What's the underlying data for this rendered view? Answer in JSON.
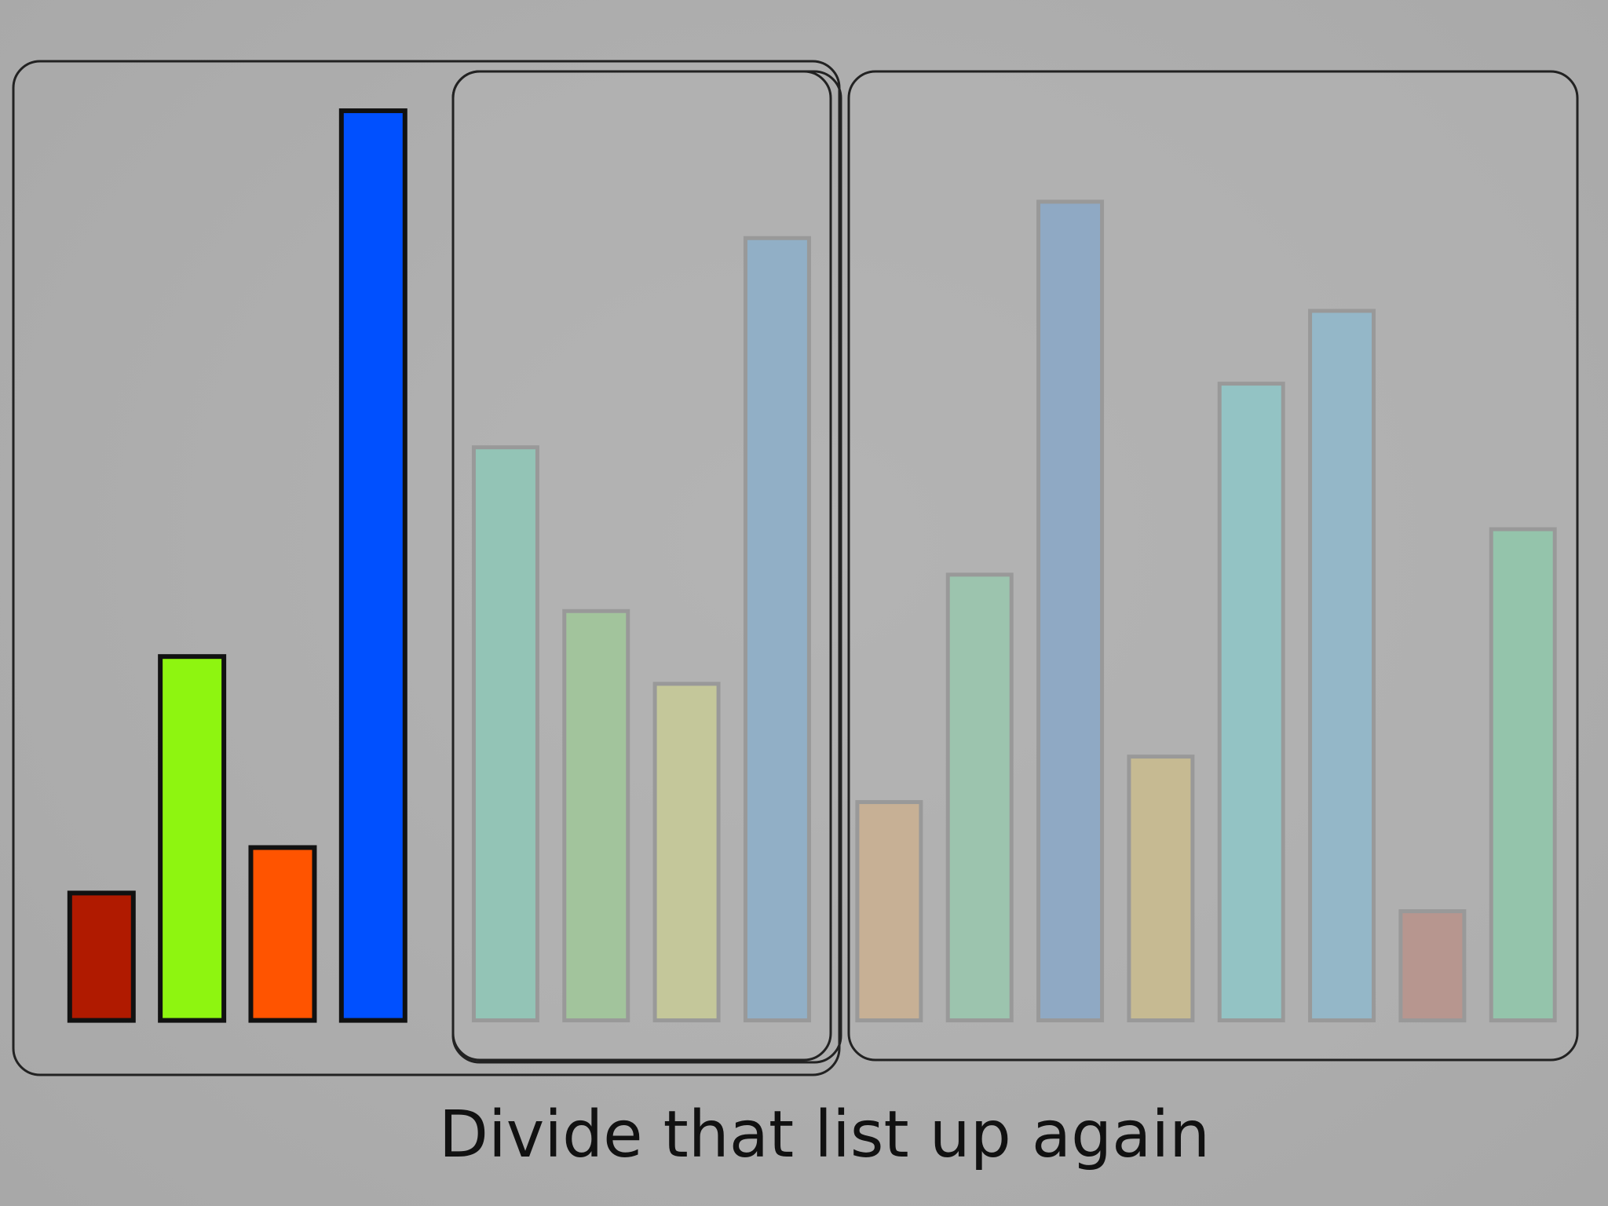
{
  "caption": "Divide that list up again",
  "ylim": [
    0,
    100
  ],
  "groups": [
    {
      "highlighted": true,
      "bars": [
        {
          "color": "#b01a00",
          "value": 14
        },
        {
          "color": "#8ef510",
          "value": 40
        },
        {
          "color": "#ff5400",
          "value": 19
        },
        {
          "color": "#0050ff",
          "value": 100
        }
      ]
    },
    {
      "highlighted": false,
      "bars": [
        {
          "color": "#93c4b6",
          "value": 63
        },
        {
          "color": "#a2c49c",
          "value": 45
        },
        {
          "color": "#c4c79a",
          "value": 37
        },
        {
          "color": "#91afc6",
          "value": 86
        }
      ]
    },
    {
      "highlighted": false,
      "bars": [
        {
          "color": "#c7b095",
          "value": 24
        },
        {
          "color": "#9cc4ae",
          "value": 49
        },
        {
          "color": "#8fa9c4",
          "value": 90
        },
        {
          "color": "#c6ba92",
          "value": 29
        },
        {
          "color": "#93c3c4",
          "value": 70
        },
        {
          "color": "#94b7c8",
          "value": 78
        },
        {
          "color": "#b7968f",
          "value": 12
        },
        {
          "color": "#94c4ab",
          "value": 54
        }
      ]
    }
  ]
}
